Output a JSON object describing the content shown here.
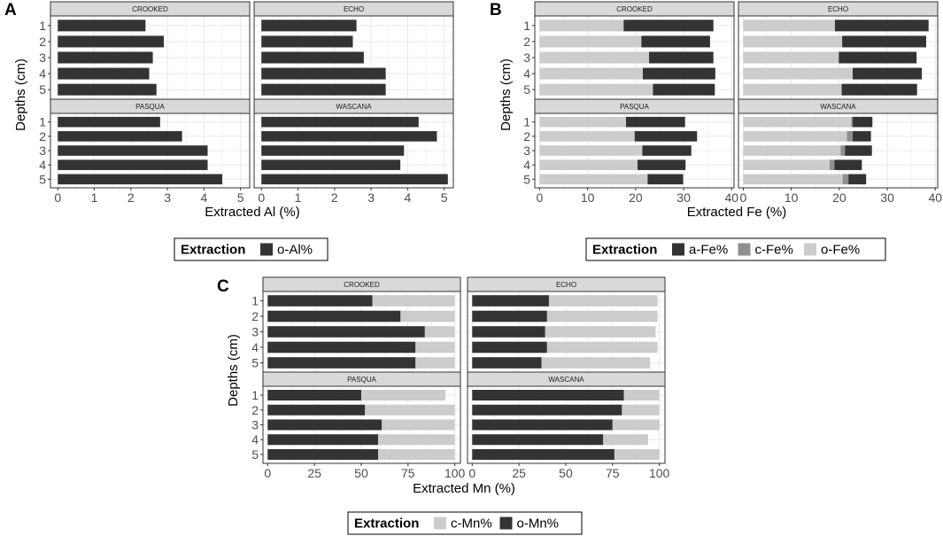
{
  "colors": {
    "dark": "#333333",
    "mid": "#8f8f8f",
    "light": "#cccccc",
    "strip_fill": "#d9d9d9",
    "grid": "#ebebeb",
    "border": "#333333"
  },
  "chart_data": [
    {
      "type": "bar",
      "orientation": "horizontal",
      "stacked": true,
      "panel_label": "A",
      "xlabel": "Extracted Al (%)",
      "ylabel": "Depths (cm)",
      "xlim": [
        -0.2,
        5.25
      ],
      "xticks": [
        "0",
        "1",
        "2",
        "3",
        "4",
        "5"
      ],
      "categories": [
        "1",
        "2",
        "3",
        "4",
        "5"
      ],
      "series_order": [
        "o-Al%"
      ],
      "series_colors": [
        "#333333"
      ],
      "legend": {
        "title": "Extraction",
        "position": "bottom",
        "entries": [
          "o-Al%"
        ],
        "colors": [
          "#333333"
        ]
      },
      "facets": [
        {
          "name": "CROOKED",
          "values": {
            "o-Al%": [
              2.4,
              2.9,
              2.6,
              2.5,
              2.7
            ]
          }
        },
        {
          "name": "ECHO",
          "values": {
            "o-Al%": [
              2.6,
              2.5,
              2.8,
              3.4,
              3.4
            ]
          }
        },
        {
          "name": "PASQUA",
          "values": {
            "o-Al%": [
              2.8,
              3.4,
              4.1,
              4.1,
              4.5
            ]
          }
        },
        {
          "name": "WASCANA",
          "values": {
            "o-Al%": [
              4.3,
              4.8,
              3.9,
              3.8,
              5.1
            ]
          }
        }
      ]
    },
    {
      "type": "bar",
      "orientation": "horizontal",
      "stacked": true,
      "panel_label": "B",
      "xlabel": "Extracted Fe (%)",
      "ylabel": "Depths (cm)",
      "xlim": [
        -1,
        40.5
      ],
      "xticks": [
        "0",
        "10",
        "20",
        "30",
        "40"
      ],
      "categories": [
        "1",
        "2",
        "3",
        "4",
        "5"
      ],
      "series_order": [
        "o-Fe%",
        "c-Fe%",
        "a-Fe%"
      ],
      "series_colors": [
        "#cccccc",
        "#8f8f8f",
        "#333333"
      ],
      "legend": {
        "title": "Extraction",
        "position": "bottom",
        "entries": [
          "a-Fe%",
          "c-Fe%",
          "o-Fe%"
        ],
        "colors": [
          "#333333",
          "#8f8f8f",
          "#cccccc"
        ]
      },
      "facets": [
        {
          "name": "CROOKED",
          "values": {
            "o-Fe%": [
              17.5,
              21.2,
              22.8,
              21.5,
              23.6
            ],
            "c-Fe%": [
              0,
              0,
              0,
              0,
              0
            ],
            "a-Fe%": [
              18.7,
              14.3,
              13.4,
              15.1,
              12.9
            ]
          }
        },
        {
          "name": "ECHO",
          "values": {
            "o-Fe%": [
              19.1,
              20.6,
              19.9,
              22.8,
              20.5
            ],
            "c-Fe%": [
              0,
              0,
              0,
              0,
              0
            ],
            "a-Fe%": [
              19.5,
              17.5,
              16.2,
              14.4,
              15.7
            ]
          }
        },
        {
          "name": "PASQUA",
          "values": {
            "o-Fe%": [
              18.0,
              19.8,
              21.4,
              20.4,
              22.5
            ],
            "c-Fe%": [
              0,
              0,
              0,
              0,
              0
            ],
            "a-Fe%": [
              12.3,
              13.0,
              10.2,
              10.0,
              7.4
            ]
          }
        },
        {
          "name": "WASCANA",
          "values": {
            "o-Fe%": [
              22.5,
              21.6,
              20.3,
              18.0,
              20.7
            ],
            "c-Fe%": [
              0.3,
              1.2,
              0.9,
              1.0,
              1.2
            ],
            "a-Fe%": [
              4.1,
              3.8,
              5.6,
              5.7,
              3.7
            ]
          }
        }
      ]
    },
    {
      "type": "bar",
      "orientation": "horizontal",
      "stacked": true,
      "panel_label": "C",
      "xlabel": "Extracted Mn (%)",
      "ylabel": "Depths (cm)",
      "xlim": [
        -2.5,
        103
      ],
      "xticks": [
        "0",
        "25",
        "50",
        "75",
        "100"
      ],
      "categories": [
        "1",
        "2",
        "3",
        "4",
        "5"
      ],
      "series_order": [
        "o-Mn%",
        "c-Mn%"
      ],
      "series_colors": [
        "#333333",
        "#cccccc"
      ],
      "legend": {
        "title": "Extraction",
        "position": "bottom",
        "entries": [
          "c-Mn%",
          "o-Mn%"
        ],
        "colors": [
          "#cccccc",
          "#333333"
        ]
      },
      "facets": [
        {
          "name": "CROOKED",
          "values": {
            "o-Mn%": [
              56,
              71,
              84,
              79,
              79
            ],
            "c-Mn%": [
              44,
              29,
              16,
              21,
              21
            ]
          }
        },
        {
          "name": "ECHO",
          "values": {
            "o-Mn%": [
              41,
              40,
              39,
              40,
              37
            ],
            "c-Mn%": [
              58,
              59,
              59,
              59,
              58
            ]
          }
        },
        {
          "name": "PASQUA",
          "values": {
            "o-Mn%": [
              50,
              52,
              61,
              59,
              59
            ],
            "c-Mn%": [
              45,
              48,
              39,
              41,
              41
            ]
          }
        },
        {
          "name": "WASCANA",
          "values": {
            "o-Mn%": [
              81,
              80,
              75,
              70,
              76
            ],
            "c-Mn%": [
              19,
              20,
              25,
              24,
              24
            ]
          }
        }
      ]
    }
  ]
}
